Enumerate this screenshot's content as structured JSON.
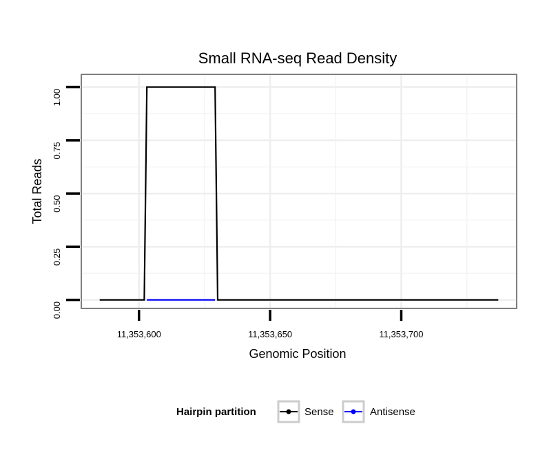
{
  "chart_data": {
    "type": "line",
    "title": "Small RNA-seq Read Density",
    "xlabel": "Genomic Position",
    "ylabel": "Total Reads",
    "xlim": [
      11353578,
      11353744
    ],
    "ylim": [
      -0.04,
      1.06
    ],
    "x_ticks": [
      {
        "value": 11353600,
        "label": "11,353,600"
      },
      {
        "value": 11353650,
        "label": "11,353,650"
      },
      {
        "value": 11353700,
        "label": "11,353,700"
      }
    ],
    "y_ticks": [
      {
        "value": 0,
        "label": "0.00"
      },
      {
        "value": 0.25,
        "label": "0.25"
      },
      {
        "value": 0.5,
        "label": "0.50"
      },
      {
        "value": 0.75,
        "label": "0.75"
      },
      {
        "value": 1,
        "label": "1.00"
      }
    ],
    "grid": true,
    "series": [
      {
        "name": "Sense",
        "color": "#000000",
        "x": [
          11353585,
          11353602,
          11353603,
          11353629,
          11353630,
          11353737
        ],
        "y": [
          0,
          0,
          1,
          1,
          0,
          0
        ]
      },
      {
        "name": "Antisense",
        "color": "#0000ff",
        "x": [
          11353603,
          11353629
        ],
        "y": [
          0,
          0
        ]
      }
    ],
    "legend": {
      "title": "Hairpin partition",
      "position": "bottom",
      "items": [
        "Sense",
        "Antisense"
      ]
    }
  }
}
